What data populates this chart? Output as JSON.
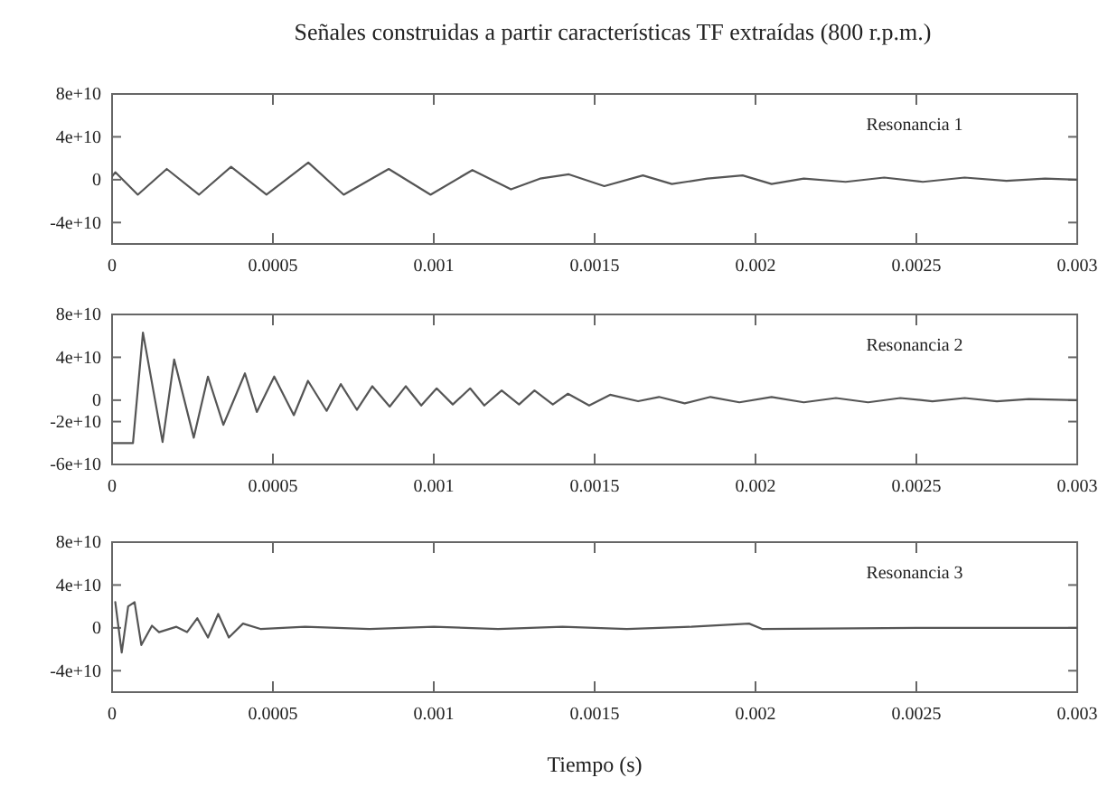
{
  "chart_data": [
    {
      "type": "line",
      "title": "Señales construidas a partir características TF extraídas (800 r.p.m.)",
      "annotations": [
        "Resonancia 1"
      ],
      "color": "#555555",
      "x": [
        0,
        1e-05,
        8e-05,
        0.00017,
        0.00027,
        0.00037,
        0.00048,
        0.00061,
        0.00072,
        0.00086,
        0.00099,
        0.00112,
        0.00124,
        0.00133,
        0.00142,
        0.00153,
        0.00165,
        0.00174,
        0.00185,
        0.00196,
        0.00205,
        0.00215,
        0.00228,
        0.0024,
        0.00252,
        0.00265,
        0.00278,
        0.0029,
        0.003
      ],
      "values": [
        3000000000.0,
        7000000000.0,
        -14000000000.0,
        10000000000.0,
        -14000000000.0,
        12000000000.0,
        -14000000000.0,
        16000000000.0,
        -14000000000.0,
        10000000000.0,
        -14000000000.0,
        9000000000.0,
        -9000000000.0,
        1000000000.0,
        5000000000.0,
        -6000000000.0,
        4000000000.0,
        -4000000000.0,
        1000000000.0,
        4000000000.0,
        -4000000000.0,
        1000000000.0,
        -2000000000.0,
        2000000000.0,
        -2000000000.0,
        2000000000.0,
        -1000000000.0,
        1000000000.0,
        0
      ],
      "xlim": [
        0,
        0.003
      ],
      "xticks": [
        0,
        0.0005,
        0.001,
        0.0015,
        0.002,
        0.0025,
        0.003
      ],
      "ylim": [
        -60000000000.0,
        80000000000.0
      ],
      "yticks": [
        {
          "value": 80000000000.0,
          "label": "8e+10"
        },
        {
          "value": 40000000000.0,
          "label": "4e+10"
        },
        {
          "value": 0,
          "label": "0"
        },
        {
          "value": -40000000000.0,
          "label": "-4e+10"
        }
      ]
    },
    {
      "type": "line",
      "annotations": [
        "Resonancia 2"
      ],
      "color": "#555555",
      "x": [
        4e-06,
        6.5e-05,
        9.6e-05,
        0.000157,
        0.000193,
        0.000254,
        0.000298,
        0.000346,
        0.000413,
        0.00045,
        0.000504,
        0.000565,
        0.000609,
        0.000667,
        0.000711,
        0.000761,
        0.000809,
        0.000863,
        0.000913,
        0.000961,
        0.001009,
        0.001059,
        0.001113,
        0.001157,
        0.001211,
        0.001265,
        0.001313,
        0.00137,
        0.001417,
        0.001483,
        0.001548,
        0.001635,
        0.0017,
        0.00178,
        0.00186,
        0.00195,
        0.00205,
        0.00215,
        0.00225,
        0.00235,
        0.00245,
        0.00255,
        0.00265,
        0.00275,
        0.00285,
        0.003
      ],
      "values": [
        -40000000000.0,
        -40000000000.0,
        63000000000.0,
        -39000000000.0,
        38000000000.0,
        -35000000000.0,
        22000000000.0,
        -23000000000.0,
        25000000000.0,
        -11000000000.0,
        22000000000.0,
        -14000000000.0,
        18000000000.0,
        -10000000000.0,
        15000000000.0,
        -9000000000.0,
        13000000000.0,
        -6000000000.0,
        13000000000.0,
        -5000000000.0,
        11000000000.0,
        -4000000000.0,
        11000000000.0,
        -5000000000.0,
        9000000000.0,
        -4000000000.0,
        9000000000.0,
        -4000000000.0,
        6000000000.0,
        -5000000000.0,
        5000000000.0,
        -1000000000.0,
        3000000000.0,
        -3000000000.0,
        3000000000.0,
        -2000000000.0,
        3000000000.0,
        -2000000000.0,
        2000000000.0,
        -2000000000.0,
        2000000000.0,
        -1000000000.0,
        2000000000.0,
        -1000000000.0,
        1000000000.0,
        0
      ],
      "xlim": [
        0,
        0.003
      ],
      "xticks": [
        0,
        0.0005,
        0.001,
        0.0015,
        0.002,
        0.0025,
        0.003
      ],
      "ylim": [
        -60000000000.0,
        80000000000.0
      ],
      "yticks": [
        {
          "value": 80000000000.0,
          "label": "8e+10"
        },
        {
          "value": 40000000000.0,
          "label": "4e+10"
        },
        {
          "value": 0,
          "label": "0"
        },
        {
          "value": -20000000000.0,
          "label": "-2e+10"
        },
        {
          "value": -60000000000.0,
          "label": "-6e+10"
        }
      ]
    },
    {
      "type": "line",
      "annotations": [
        "Resonancia 3"
      ],
      "xlabel": "Tiempo (s)",
      "color": "#555555",
      "x": [
        1e-05,
        3e-05,
        5e-05,
        7e-05,
        9.1e-05,
        0.000124,
        0.000146,
        0.0002,
        0.000233,
        0.000265,
        0.000298,
        0.00033,
        0.000363,
        0.000407,
        0.000461,
        0.0006,
        0.0008,
        0.001,
        0.0012,
        0.0014,
        0.0016,
        0.0018,
        0.00198,
        0.00202,
        0.0025,
        0.003
      ],
      "values": [
        24000000000.0,
        -23000000000.0,
        20000000000.0,
        24000000000.0,
        -16000000000.0,
        2000000000.0,
        -4000000000.0,
        1000000000.0,
        -4000000000.0,
        9000000000.0,
        -9000000000.0,
        13000000000.0,
        -9000000000.0,
        4000000000.0,
        -1000000000.0,
        1000000000.0,
        -1000000000.0,
        1000000000.0,
        -1000000000.0,
        1000000000.0,
        -1000000000.0,
        1000000000.0,
        4000000000.0,
        -1000000000.0,
        0,
        0
      ],
      "xlim": [
        0,
        0.003
      ],
      "xticks": [
        0,
        0.0005,
        0.001,
        0.0015,
        0.002,
        0.0025,
        0.003
      ],
      "ylim": [
        -60000000000.0,
        80000000000.0
      ],
      "yticks": [
        {
          "value": 80000000000.0,
          "label": "8e+10"
        },
        {
          "value": 40000000000.0,
          "label": "4e+10"
        },
        {
          "value": 0,
          "label": "0"
        },
        {
          "value": -40000000000.0,
          "label": "-4e+10"
        }
      ]
    }
  ]
}
